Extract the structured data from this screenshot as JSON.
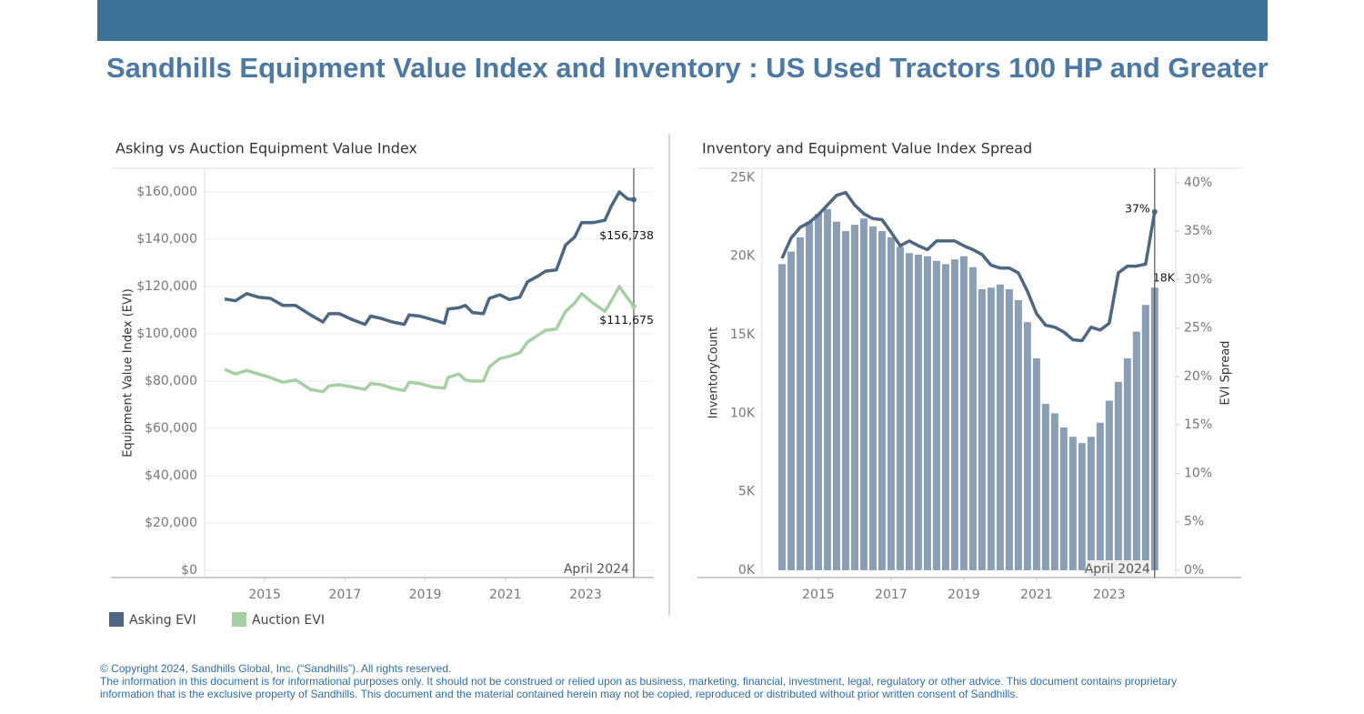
{
  "header": {
    "title": "Sandhills Equipment Value Index and Inventory : US Used Tractors 100 HP and Greater"
  },
  "chart_data": [
    {
      "type": "line",
      "title": "Asking vs Auction Equipment Value Index",
      "y_label": "Equipment Value Index (EVI)",
      "x": [
        2014.0,
        2014.27,
        2014.55,
        2014.84,
        2015.14,
        2015.45,
        2015.77,
        2016.14,
        2016.45,
        2016.6,
        2016.86,
        2017.18,
        2017.5,
        2017.64,
        2017.9,
        2018.18,
        2018.48,
        2018.6,
        2018.86,
        2019.18,
        2019.48,
        2019.57,
        2019.84,
        2020.0,
        2020.18,
        2020.45,
        2020.6,
        2020.86,
        2021.1,
        2021.36,
        2021.55,
        2021.82,
        2022.0,
        2022.27,
        2022.5,
        2022.73,
        2022.9,
        2023.18,
        2023.48,
        2023.64,
        2023.84,
        2024.05,
        2024.2
      ],
      "series": [
        {
          "name": "Asking EVI",
          "color": "#4d6681",
          "end_label": "$156,738",
          "values": [
            114700,
            114000,
            117000,
            115500,
            115000,
            112000,
            112000,
            108000,
            105000,
            108500,
            108500,
            106000,
            104000,
            107500,
            106500,
            105000,
            104000,
            108000,
            107500,
            106000,
            104500,
            110500,
            111000,
            112000,
            109000,
            108500,
            115000,
            116500,
            114500,
            115500,
            122000,
            124500,
            126500,
            127000,
            137500,
            141000,
            147000,
            147000,
            148000,
            154000,
            160000,
            157000,
            156738
          ]
        },
        {
          "name": "Auction EVI",
          "color": "#a6d0a3",
          "end_label": "$111,675",
          "values": [
            85000,
            83000,
            84500,
            83000,
            81500,
            79500,
            80500,
            76500,
            75500,
            78000,
            78500,
            77500,
            76500,
            79000,
            78500,
            77000,
            76000,
            79500,
            79000,
            77500,
            77000,
            81500,
            83000,
            80500,
            80000,
            80000,
            86000,
            89500,
            90500,
            92000,
            96500,
            99500,
            101500,
            102000,
            109500,
            113000,
            117000,
            113000,
            109500,
            114000,
            120000,
            115000,
            111675
          ]
        }
      ],
      "xlim": [
        2013.5,
        2024.7
      ],
      "xticks": [
        2015,
        2017,
        2019,
        2021,
        2023
      ],
      "ylim": [
        0,
        170000
      ],
      "yticks": [
        {
          "value": 0,
          "label": "$0"
        },
        {
          "value": 20000,
          "label": "$20,000"
        },
        {
          "value": 40000,
          "label": "$40,000"
        },
        {
          "value": 60000,
          "label": "$60,000"
        },
        {
          "value": 80000,
          "label": "$80,000"
        },
        {
          "value": 100000,
          "label": "$100,000"
        },
        {
          "value": 120000,
          "label": "$120,000"
        },
        {
          "value": 140000,
          "label": "$140,000"
        },
        {
          "value": 160000,
          "label": "$160,000"
        }
      ],
      "grid": true,
      "legend": "bottom-left",
      "reference_line": {
        "x": 2024.2,
        "label": "April 2024"
      }
    },
    {
      "type": "combo",
      "title": "Inventory and Equipment Value Index Spread",
      "y_label": "InventoryCount",
      "y2_label": "EVI Spread",
      "x": [
        2014.0,
        2014.25,
        2014.5,
        2014.75,
        2015.0,
        2015.25,
        2015.5,
        2015.75,
        2016.0,
        2016.25,
        2016.5,
        2016.75,
        2017.0,
        2017.25,
        2017.5,
        2017.75,
        2018.0,
        2018.25,
        2018.5,
        2018.75,
        2019.0,
        2019.25,
        2019.5,
        2019.75,
        2020.0,
        2020.25,
        2020.5,
        2020.75,
        2021.0,
        2021.25,
        2021.5,
        2021.75,
        2022.0,
        2022.25,
        2022.5,
        2022.75,
        2023.0,
        2023.25,
        2023.5,
        2023.75,
        2024.0,
        2024.25
      ],
      "series": [
        {
          "type": "bar",
          "color": "#8a9fb6",
          "end_label": "18K",
          "values": [
            19500,
            20300,
            21200,
            22200,
            22700,
            23000,
            22200,
            21600,
            22000,
            22400,
            21900,
            21600,
            21200,
            20600,
            20200,
            20100,
            20000,
            19700,
            19500,
            19800,
            20000,
            19300,
            17900,
            18000,
            18200,
            17900,
            17200,
            15800,
            13500,
            10600,
            10000,
            9100,
            8500,
            8100,
            8500,
            9400,
            10800,
            12000,
            13500,
            15200,
            16900,
            18000
          ]
        },
        {
          "type": "line",
          "axis": "y2",
          "color": "#4d6681",
          "end_label": "37%",
          "values": [
            32.2,
            34.3,
            35.4,
            35.9,
            36.7,
            37.7,
            38.7,
            39.0,
            37.7,
            36.8,
            36.3,
            36.2,
            34.9,
            33.5,
            34.0,
            33.5,
            33.1,
            34.0,
            34.0,
            34.0,
            33.5,
            33.1,
            32.6,
            31.5,
            31.2,
            31.2,
            30.7,
            28.8,
            26.5,
            25.3,
            25.1,
            24.6,
            23.8,
            23.7,
            25.1,
            24.8,
            25.5,
            30.7,
            31.4,
            31.4,
            31.6,
            37.0
          ]
        }
      ],
      "xlim": [
        2013.45,
        2024.83
      ],
      "xticks": [
        2015,
        2017,
        2019,
        2021,
        2023
      ],
      "ylim": [
        0,
        25600
      ],
      "yticks": [
        {
          "value": 0,
          "label": "0K"
        },
        {
          "value": 5000,
          "label": "5K"
        },
        {
          "value": 10000,
          "label": "10K"
        },
        {
          "value": 15000,
          "label": "15K"
        },
        {
          "value": 20000,
          "label": "20K"
        },
        {
          "value": 25000,
          "label": "25K"
        }
      ],
      "y2lim": [
        0,
        41.5
      ],
      "y2ticks": [
        {
          "value": 0,
          "label": "0%"
        },
        {
          "value": 5,
          "label": "5%"
        },
        {
          "value": 10,
          "label": "10%"
        },
        {
          "value": 15,
          "label": "15%"
        },
        {
          "value": 20,
          "label": "20%"
        },
        {
          "value": 25,
          "label": "25%"
        },
        {
          "value": 30,
          "label": "30%"
        },
        {
          "value": 35,
          "label": "35%"
        },
        {
          "value": 40,
          "label": "40%"
        }
      ],
      "grid": false,
      "reference_line": {
        "x": 2024.25,
        "label": "April 2024"
      }
    }
  ],
  "footer": {
    "lines": [
      "© Copyright 2024, Sandhills Global, Inc. (“Sandhills”). All rights reserved.",
      "The information in this document is for informational purposes only.  It should not be construed or relied upon as business, marketing, financial, investment, legal, regulatory or other advice. This document contains proprietary",
      "information that is the exclusive property of Sandhills. This document and the material contained herein may not be copied, reproduced or distributed without prior written consent of Sandhills."
    ]
  }
}
